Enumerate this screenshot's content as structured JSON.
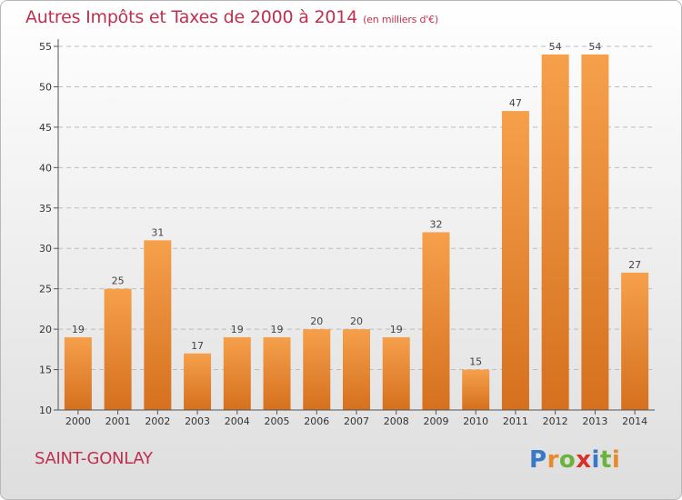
{
  "title": {
    "main": "Autres Impôts et Taxes de 2000 à 2014",
    "unit": "(en milliers d'€)"
  },
  "commune": "SAINT-GONLAY",
  "logo": {
    "text": "Proxiti",
    "letter_colors": [
      "#3a78c8",
      "#e8892c",
      "#6bb33c",
      "#d7322a",
      "#3a78c8",
      "#6bb33c",
      "#e8892c"
    ]
  },
  "colors": {
    "bar_light": "#f6a04c",
    "bar_dark": "#d5701e",
    "title": "#c0304e",
    "grid": "#bdbdbd"
  },
  "chart_data": {
    "type": "bar",
    "categories": [
      "2000",
      "2001",
      "2002",
      "2003",
      "2004",
      "2005",
      "2006",
      "2007",
      "2008",
      "2009",
      "2010",
      "2011",
      "2012",
      "2013",
      "2014"
    ],
    "values": [
      19,
      25,
      31,
      17,
      19,
      19,
      20,
      20,
      19,
      32,
      15,
      47,
      54,
      54,
      27
    ],
    "ylim": [
      10,
      55
    ],
    "yticks": [
      10,
      15,
      20,
      25,
      30,
      35,
      40,
      45,
      50,
      55
    ],
    "grid": true,
    "data_labels": true
  }
}
